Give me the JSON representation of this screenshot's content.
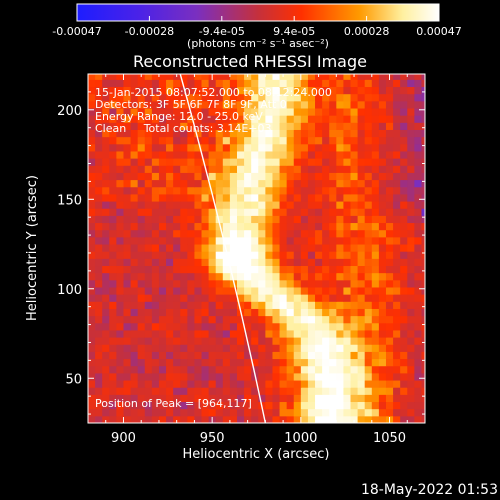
{
  "chart_data": {
    "type": "heatmap",
    "title": "Reconstructed RHESSI Image",
    "xlabel": "Heliocentric X (arcsec)",
    "ylabel": "Heliocentric Y (arcsec)",
    "xlim": [
      880,
      1070
    ],
    "ylim": [
      25,
      220
    ],
    "xticks": [
      900,
      950,
      1000,
      1050
    ],
    "yticks": [
      50,
      100,
      150,
      200
    ],
    "colorbar": {
      "ticks": [
        "-0.00047",
        "-0.00028",
        "-9.4e-05",
        "9.4e-05",
        "0.00028",
        "0.00047"
      ],
      "range": [
        -0.00047,
        0.00047
      ],
      "label": "(photons cm⁻² s⁻¹ asec⁻²)",
      "colors": [
        "#1d1dff",
        "#7a2fc0",
        "#c5303c",
        "#ff3000",
        "#ff9a00",
        "#fff0a0",
        "#ffffff"
      ]
    },
    "annotations": [
      "15-Jan-2015 08:07:52.000 to 08:12:24.000",
      "Detectors: 3F 5F 6F 7F 8F 9F, Att 0",
      "Energy Range: 12.0 - 25.0 keV",
      "Clean     Total counts: 3.14E+03"
    ],
    "peak_label": "Position of Peak = [964,117]",
    "peak": [
      964,
      117
    ],
    "limb_x_at_ymax": 932,
    "limb_x_at_ymin": 980,
    "bright_ridge": [
      {
        "x": 986,
        "y": 205
      },
      {
        "x": 980,
        "y": 185
      },
      {
        "x": 972,
        "y": 160
      },
      {
        "x": 964,
        "y": 135
      },
      {
        "x": 966,
        "y": 117
      },
      {
        "x": 980,
        "y": 100
      },
      {
        "x": 1000,
        "y": 85
      },
      {
        "x": 1010,
        "y": 70
      },
      {
        "x": 1015,
        "y": 50
      }
    ]
  },
  "timestamp": "18-May-2022 01:53"
}
